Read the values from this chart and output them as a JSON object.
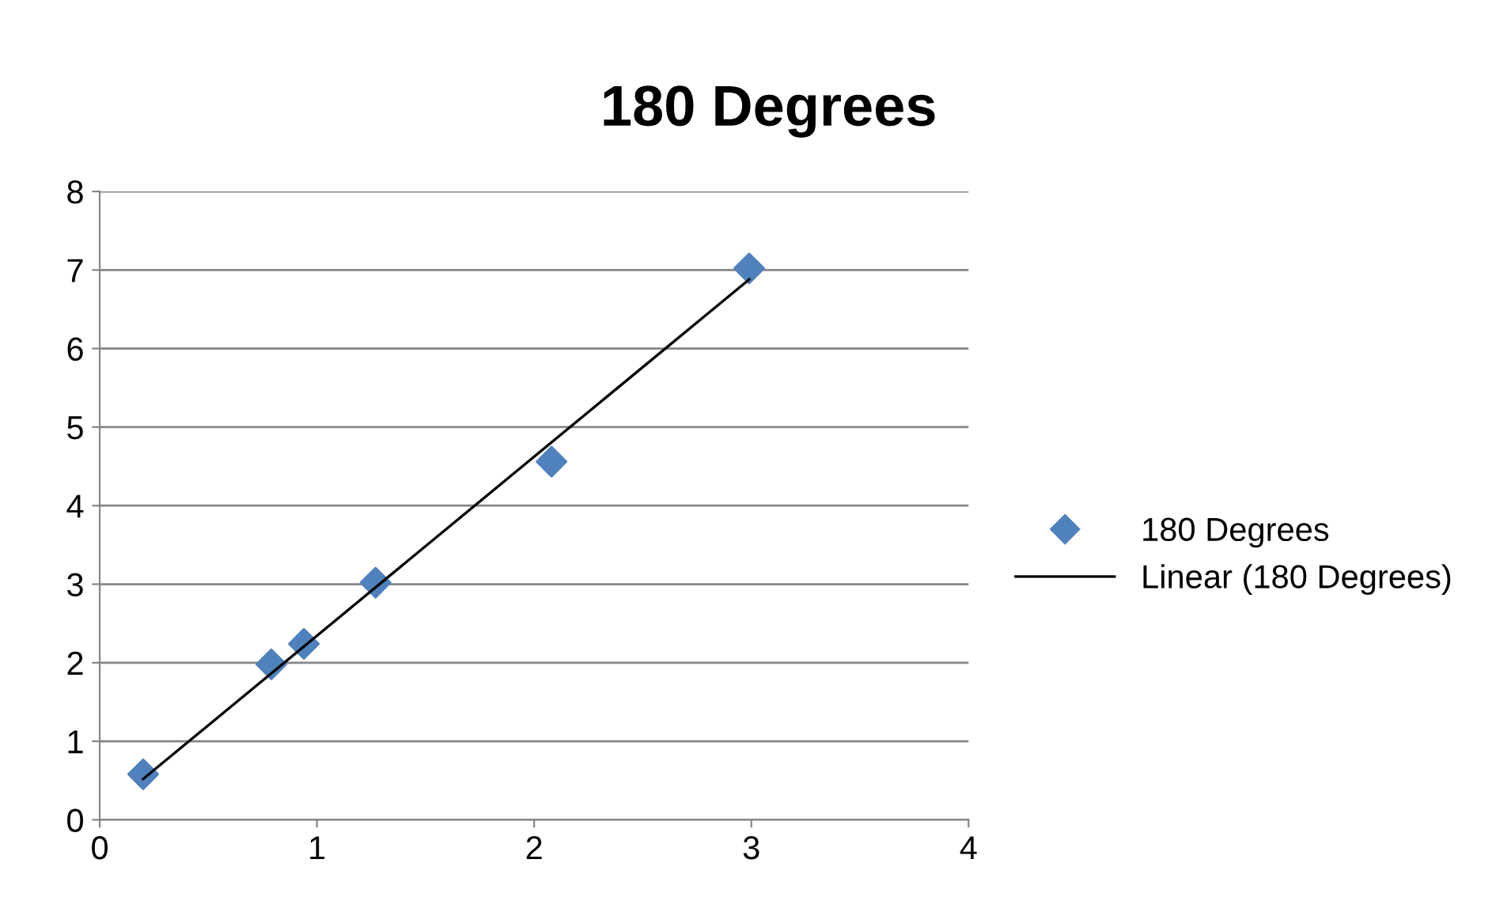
{
  "chart_data": {
    "type": "scatter",
    "title": "180 Degrees",
    "xlim": [
      0,
      4
    ],
    "xticks": [
      0,
      1,
      2,
      3,
      4
    ],
    "ylim": [
      0,
      8
    ],
    "yticks": [
      0,
      1,
      2,
      3,
      4,
      5,
      6,
      7,
      8
    ],
    "grid": "y",
    "legend": "right",
    "marker": "diamond",
    "series": [
      {
        "name": "180 Degrees",
        "color": "#4f81bd",
        "x": [
          0.2,
          0.79,
          0.94,
          1.27,
          2.08,
          2.99
        ],
        "values": [
          0.58,
          1.98,
          2.24,
          3.02,
          4.56,
          7.02
        ]
      },
      {
        "name": "Linear (180 Degrees)",
        "type": "line",
        "color": "#000000",
        "marker": "none",
        "line_style": "solid",
        "x": [
          0.2,
          2.99
        ],
        "values": [
          0.52,
          6.88
        ]
      }
    ]
  }
}
